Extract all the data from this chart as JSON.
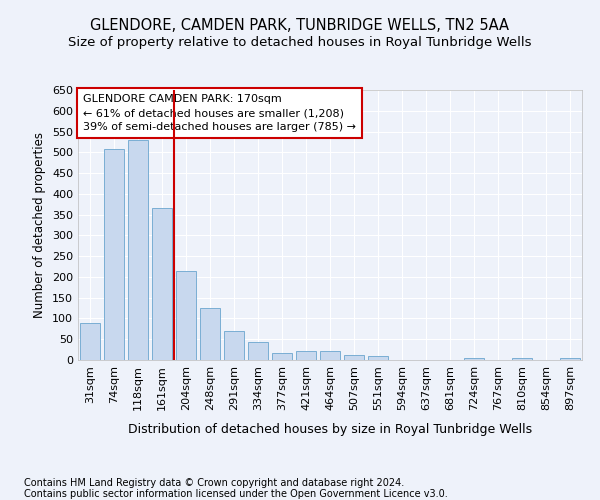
{
  "title": "GLENDORE, CAMDEN PARK, TUNBRIDGE WELLS, TN2 5AA",
  "subtitle": "Size of property relative to detached houses in Royal Tunbridge Wells",
  "xlabel": "Distribution of detached houses by size in Royal Tunbridge Wells",
  "ylabel": "Number of detached properties",
  "footnote1": "Contains HM Land Registry data © Crown copyright and database right 2024.",
  "footnote2": "Contains public sector information licensed under the Open Government Licence v3.0.",
  "categories": [
    "31sqm",
    "74sqm",
    "118sqm",
    "161sqm",
    "204sqm",
    "248sqm",
    "291sqm",
    "334sqm",
    "377sqm",
    "421sqm",
    "464sqm",
    "507sqm",
    "551sqm",
    "594sqm",
    "637sqm",
    "681sqm",
    "724sqm",
    "767sqm",
    "810sqm",
    "854sqm",
    "897sqm"
  ],
  "values": [
    90,
    507,
    530,
    365,
    215,
    126,
    70,
    43,
    18,
    21,
    21,
    11,
    10,
    0,
    0,
    0,
    6,
    0,
    6,
    0,
    6
  ],
  "bar_color": "#c8d8ee",
  "bar_edge_color": "#7aaed4",
  "vline_x": 3.5,
  "vline_color": "#cc0000",
  "annotation_line1": "GLENDORE CAMDEN PARK: 170sqm",
  "annotation_line2": "← 61% of detached houses are smaller (1,208)",
  "annotation_line3": "39% of semi-detached houses are larger (785) →",
  "annotation_box_color": "#ffffff",
  "annotation_box_edge_color": "#cc0000",
  "ylim": [
    0,
    650
  ],
  "yticks": [
    0,
    50,
    100,
    150,
    200,
    250,
    300,
    350,
    400,
    450,
    500,
    550,
    600,
    650
  ],
  "background_color": "#eef2fa",
  "plot_bg_color": "#eef2fa",
  "grid_color": "#ffffff",
  "title_fontsize": 10.5,
  "subtitle_fontsize": 9.5,
  "xlabel_fontsize": 9,
  "ylabel_fontsize": 8.5,
  "tick_fontsize": 8,
  "annotation_fontsize": 8,
  "footnote_fontsize": 7
}
